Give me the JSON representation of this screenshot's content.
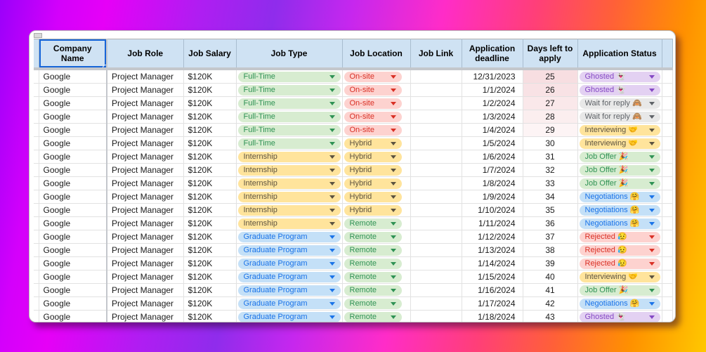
{
  "background": {
    "gradient_stops": [
      "#9b00fa",
      "#e600f7",
      "#8f2cec",
      "#ff2cc8",
      "#ff3f78",
      "#ff9100",
      "#ffc800"
    ]
  },
  "colors": {
    "header_bg": "#cfe2f3",
    "selection_blue": "#1665d8",
    "gridline": "#e2e2e2",
    "freeze_divider": "#c4c7cc",
    "window_bg": "#ffffff"
  },
  "sheet": {
    "columns": [
      "Company Name",
      "Job Role",
      "Job Salary",
      "Job Type",
      "Job Location",
      "Job Link",
      "Application deadline",
      "Days left to apply",
      "Application Status"
    ],
    "selected_column": "Company Name",
    "chip_colors": {
      "green": {
        "bg": "#d7ecd0",
        "fg": "#2f9254"
      },
      "red": {
        "bg": "#fdd2cf",
        "fg": "#d93025"
      },
      "yellow": {
        "bg": "#ffe49c",
        "fg": "#5c5340"
      },
      "blue": {
        "bg": "#c4e0f7",
        "fg": "#1a73e8"
      },
      "purple": {
        "bg": "#e3d1f2",
        "fg": "#8447c4"
      },
      "gray": {
        "bg": "#e8e8e8",
        "fg": "#5f6368"
      }
    },
    "rows": [
      {
        "company": "Google",
        "role": "Project Manager",
        "salary": "$120K",
        "job_type": "Full-Time",
        "job_type_color": "green",
        "location": "On-site",
        "location_color": "red",
        "job_link": "",
        "deadline": "12/31/2023",
        "days_left": "25",
        "days_bg": "#f7dee1",
        "status": "Ghosted",
        "status_emoji": "👻",
        "status_color": "purple"
      },
      {
        "company": "Google",
        "role": "Project Manager",
        "salary": "$120K",
        "job_type": "Full-Time",
        "job_type_color": "green",
        "location": "On-site",
        "location_color": "red",
        "job_link": "",
        "deadline": "1/1/2024",
        "days_left": "26",
        "days_bg": "#f8e2e5",
        "status": "Ghosted",
        "status_emoji": "👻",
        "status_color": "purple"
      },
      {
        "company": "Google",
        "role": "Project Manager",
        "salary": "$120K",
        "job_type": "Full-Time",
        "job_type_color": "green",
        "location": "On-site",
        "location_color": "red",
        "job_link": "",
        "deadline": "1/2/2024",
        "days_left": "27",
        "days_bg": "#fae8ea",
        "status": "Wait for reply",
        "status_emoji": "🙈",
        "status_color": "gray"
      },
      {
        "company": "Google",
        "role": "Project Manager",
        "salary": "$120K",
        "job_type": "Full-Time",
        "job_type_color": "green",
        "location": "On-site",
        "location_color": "red",
        "job_link": "",
        "deadline": "1/3/2024",
        "days_left": "28",
        "days_bg": "#fbeeef",
        "status": "Wait for reply",
        "status_emoji": "🙈",
        "status_color": "gray"
      },
      {
        "company": "Google",
        "role": "Project Manager",
        "salary": "$120K",
        "job_type": "Full-Time",
        "job_type_color": "green",
        "location": "On-site",
        "location_color": "red",
        "job_link": "",
        "deadline": "1/4/2024",
        "days_left": "29",
        "days_bg": "#fdf4f5",
        "status": "Interviewing",
        "status_emoji": "🤝",
        "status_color": "yellow"
      },
      {
        "company": "Google",
        "role": "Project Manager",
        "salary": "$120K",
        "job_type": "Full-Time",
        "job_type_color": "green",
        "location": "Hybrid",
        "location_color": "yellow",
        "job_link": "",
        "deadline": "1/5/2024",
        "days_left": "30",
        "days_bg": "#ffffff",
        "status": "Interviewing",
        "status_emoji": "🤝",
        "status_color": "yellow"
      },
      {
        "company": "Google",
        "role": "Project Manager",
        "salary": "$120K",
        "job_type": "Internship",
        "job_type_color": "yellow",
        "location": "Hybrid",
        "location_color": "yellow",
        "job_link": "",
        "deadline": "1/6/2024",
        "days_left": "31",
        "days_bg": "#ffffff",
        "status": "Job Offer",
        "status_emoji": "🎉",
        "status_color": "green"
      },
      {
        "company": "Google",
        "role": "Project Manager",
        "salary": "$120K",
        "job_type": "Internship",
        "job_type_color": "yellow",
        "location": "Hybrid",
        "location_color": "yellow",
        "job_link": "",
        "deadline": "1/7/2024",
        "days_left": "32",
        "days_bg": "#ffffff",
        "status": "Job Offer",
        "status_emoji": "🎉",
        "status_color": "green"
      },
      {
        "company": "Google",
        "role": "Project Manager",
        "salary": "$120K",
        "job_type": "Internship",
        "job_type_color": "yellow",
        "location": "Hybrid",
        "location_color": "yellow",
        "job_link": "",
        "deadline": "1/8/2024",
        "days_left": "33",
        "days_bg": "#ffffff",
        "status": "Job Offer",
        "status_emoji": "🎉",
        "status_color": "green"
      },
      {
        "company": "Google",
        "role": "Project Manager",
        "salary": "$120K",
        "job_type": "Internship",
        "job_type_color": "yellow",
        "location": "Hybrid",
        "location_color": "yellow",
        "job_link": "",
        "deadline": "1/9/2024",
        "days_left": "34",
        "days_bg": "#ffffff",
        "status": "Negotiations",
        "status_emoji": "🤗",
        "status_color": "blue"
      },
      {
        "company": "Google",
        "role": "Project Manager",
        "salary": "$120K",
        "job_type": "Internship",
        "job_type_color": "yellow",
        "location": "Hybrid",
        "location_color": "yellow",
        "job_link": "",
        "deadline": "1/10/2024",
        "days_left": "35",
        "days_bg": "#ffffff",
        "status": "Negotiations",
        "status_emoji": "🤗",
        "status_color": "blue"
      },
      {
        "company": "Google",
        "role": "Project Manager",
        "salary": "$120K",
        "job_type": "Internship",
        "job_type_color": "yellow",
        "location": "Remote",
        "location_color": "green",
        "job_link": "",
        "deadline": "1/11/2024",
        "days_left": "36",
        "days_bg": "#ffffff",
        "status": "Negotiations",
        "status_emoji": "🤗",
        "status_color": "blue"
      },
      {
        "company": "Google",
        "role": "Project Manager",
        "salary": "$120K",
        "job_type": "Graduate Program",
        "job_type_color": "blue",
        "location": "Remote",
        "location_color": "green",
        "job_link": "",
        "deadline": "1/12/2024",
        "days_left": "37",
        "days_bg": "#ffffff",
        "status": "Rejected",
        "status_emoji": "😥",
        "status_color": "red"
      },
      {
        "company": "Google",
        "role": "Project Manager",
        "salary": "$120K",
        "job_type": "Graduate Program",
        "job_type_color": "blue",
        "location": "Remote",
        "location_color": "green",
        "job_link": "",
        "deadline": "1/13/2024",
        "days_left": "38",
        "days_bg": "#ffffff",
        "status": "Rejected",
        "status_emoji": "😥",
        "status_color": "red"
      },
      {
        "company": "Google",
        "role": "Project Manager",
        "salary": "$120K",
        "job_type": "Graduate Program",
        "job_type_color": "blue",
        "location": "Remote",
        "location_color": "green",
        "job_link": "",
        "deadline": "1/14/2024",
        "days_left": "39",
        "days_bg": "#ffffff",
        "status": "Rejected",
        "status_emoji": "😥",
        "status_color": "red"
      },
      {
        "company": "Google",
        "role": "Project Manager",
        "salary": "$120K",
        "job_type": "Graduate Program",
        "job_type_color": "blue",
        "location": "Remote",
        "location_color": "green",
        "job_link": "",
        "deadline": "1/15/2024",
        "days_left": "40",
        "days_bg": "#ffffff",
        "status": "Interviewing",
        "status_emoji": "🤝",
        "status_color": "yellow"
      },
      {
        "company": "Google",
        "role": "Project Manager",
        "salary": "$120K",
        "job_type": "Graduate Program",
        "job_type_color": "blue",
        "location": "Remote",
        "location_color": "green",
        "job_link": "",
        "deadline": "1/16/2024",
        "days_left": "41",
        "days_bg": "#ffffff",
        "status": "Job Offer",
        "status_emoji": "🎉",
        "status_color": "green"
      },
      {
        "company": "Google",
        "role": "Project Manager",
        "salary": "$120K",
        "job_type": "Graduate Program",
        "job_type_color": "blue",
        "location": "Remote",
        "location_color": "green",
        "job_link": "",
        "deadline": "1/17/2024",
        "days_left": "42",
        "days_bg": "#ffffff",
        "status": "Negotiations",
        "status_emoji": "🤗",
        "status_color": "blue"
      },
      {
        "company": "Google",
        "role": "Project Manager",
        "salary": "$120K",
        "job_type": "Graduate Program",
        "job_type_color": "blue",
        "location": "Remote",
        "location_color": "green",
        "job_link": "",
        "deadline": "1/18/2024",
        "days_left": "43",
        "days_bg": "#ffffff",
        "status": "Ghosted",
        "status_emoji": "👻",
        "status_color": "purple"
      }
    ]
  }
}
